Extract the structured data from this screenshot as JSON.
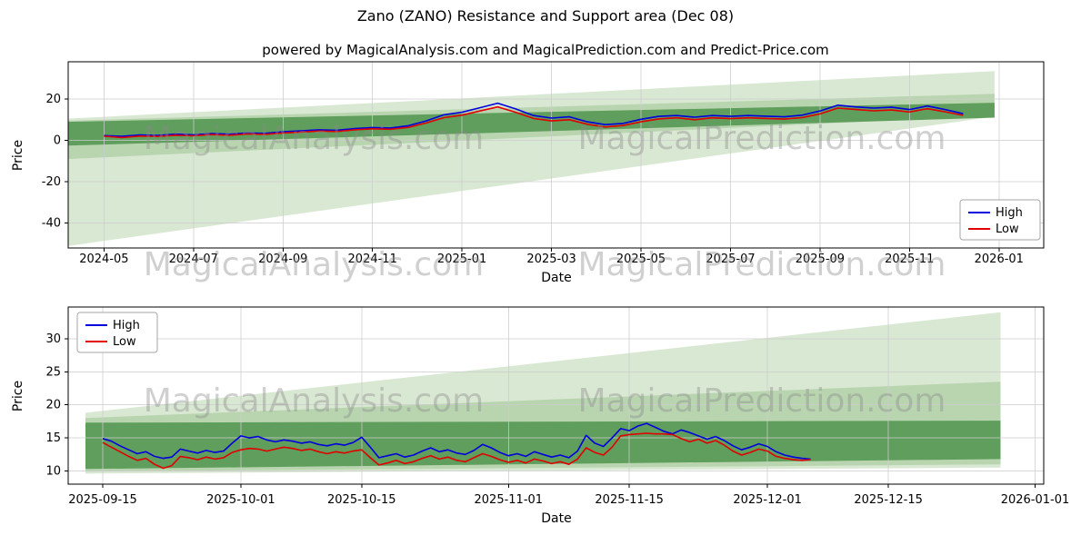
{
  "title": "Zano (ZANO) Resistance and Support area (Dec 08)",
  "subtitle": "powered by MagicalAnalysis.com and MagicalPrediction.com and Predict-Price.com",
  "watermarks": {
    "left": "MagicalAnalysis.com",
    "right": "MagicalPrediction.com"
  },
  "colors": {
    "high": "#0000dd",
    "low": "#e00000",
    "grid": "#cccccc",
    "watermark": "#8c8c8c",
    "band_light": "#d9e8d3",
    "band_mid": "#b9d5b0",
    "band_dark": "#5f9e5c"
  },
  "chart_data": [
    {
      "type": "line",
      "title": "Zano (ZANO) Resistance and Support area",
      "xlabel": "Date",
      "ylabel": "Price",
      "xlim": [
        -0.8,
        21.0
      ],
      "ylim": [
        -52,
        38
      ],
      "x_ticks": {
        "pos": [
          0,
          2,
          4,
          6,
          8,
          10,
          12,
          14,
          16,
          18,
          20
        ],
        "labels": [
          "2024-05",
          "2024-07",
          "2024-09",
          "2024-11",
          "2025-01",
          "2025-03",
          "2025-05",
          "2025-07",
          "2025-09",
          "2025-11",
          "2026-01"
        ]
      },
      "y_ticks": [
        -40,
        -20,
        0,
        20
      ],
      "legend_position": "lower right",
      "bands": [
        {
          "name": "outer-support-area",
          "color": "#d9e8d3",
          "points": [
            [
              -0.8,
              10.5
            ],
            [
              19.9,
              33.5
            ],
            [
              19.9,
              11.5
            ],
            [
              -0.8,
              -51
            ]
          ]
        },
        {
          "name": "mid-support-area",
          "color": "#b9d5b0",
          "points": [
            [
              -0.8,
              9.5
            ],
            [
              19.9,
              22.5
            ],
            [
              19.9,
              12.0
            ],
            [
              -0.8,
              -9
            ]
          ]
        },
        {
          "name": "core-resistance-band",
          "color": "#5f9e5c",
          "points": [
            [
              -0.8,
              9.0
            ],
            [
              19.9,
              18.2
            ],
            [
              19.9,
              11.0
            ],
            [
              -0.8,
              -2.5
            ]
          ]
        }
      ],
      "series": [
        {
          "name": "High",
          "color": "#0000dd",
          "x_start": 0,
          "x_step": 0.4,
          "values": [
            2.3,
            2.0,
            2.6,
            2.4,
            3.0,
            2.7,
            3.3,
            3.0,
            3.6,
            3.4,
            4.2,
            4.6,
            5.1,
            4.9,
            5.7,
            6.2,
            6.0,
            7.1,
            9.4,
            12.4,
            13.6,
            15.8,
            18.0,
            15.2,
            12.0,
            10.8,
            11.4,
            9.0,
            7.6,
            8.2,
            10.2,
            11.6,
            12.0,
            11.2,
            12.0,
            11.6,
            12.0,
            11.7,
            11.4,
            12.2,
            14.2,
            17.0,
            16.2,
            15.6,
            16.0,
            14.9,
            16.6,
            14.9,
            12.9
          ]
        },
        {
          "name": "Low",
          "color": "#e00000",
          "x_start": 0,
          "x_step": 0.4,
          "values": [
            2.0,
            1.4,
            2.1,
            1.9,
            2.5,
            2.2,
            2.8,
            2.5,
            3.1,
            2.9,
            3.6,
            4.0,
            4.5,
            4.3,
            5.1,
            5.6,
            5.4,
            6.3,
            8.4,
            11.0,
            12.2,
            14.2,
            16.2,
            13.6,
            10.6,
            9.4,
            10.0,
            7.8,
            6.5,
            7.2,
            9.0,
            10.4,
            10.9,
            10.0,
            10.9,
            10.5,
            10.9,
            10.6,
            10.3,
            11.0,
            12.8,
            15.6,
            14.9,
            14.3,
            14.7,
            13.7,
            15.3,
            13.8,
            12.1
          ]
        }
      ]
    },
    {
      "type": "line",
      "title": "Zano (ZANO) Resistance and Support area (detail)",
      "xlabel": "Date",
      "ylabel": "Price",
      "xlim": [
        -4,
        109
      ],
      "ylim": [
        8,
        34.8
      ],
      "x_ticks": {
        "pos": [
          0,
          16,
          30,
          47,
          61,
          77,
          91,
          108
        ],
        "labels": [
          "2025-09-15",
          "2025-10-01",
          "2025-10-15",
          "2025-11-01",
          "2025-11-15",
          "2025-12-01",
          "2025-12-15",
          "2026-01-01"
        ]
      },
      "y_ticks": [
        10,
        15,
        20,
        25,
        30
      ],
      "legend_position": "upper left",
      "bands": [
        {
          "name": "outer-support-area",
          "color": "#d9e8d3",
          "points": [
            [
              -2,
              18.8
            ],
            [
              104,
              34.0
            ],
            [
              104,
              10.5
            ],
            [
              -2,
              9.6
            ]
          ]
        },
        {
          "name": "mid-support-area",
          "color": "#b9d5b0",
          "points": [
            [
              -2,
              18.0
            ],
            [
              104,
              23.5
            ],
            [
              104,
              11.0
            ],
            [
              -2,
              9.9
            ]
          ]
        },
        {
          "name": "core-resistance-band",
          "color": "#5f9e5c",
          "points": [
            [
              -2,
              17.3
            ],
            [
              104,
              17.6
            ],
            [
              104,
              11.8
            ],
            [
              -2,
              10.3
            ]
          ]
        }
      ],
      "series": [
        {
          "name": "High",
          "color": "#0000dd",
          "x_start": 0,
          "x_step": 1,
          "values": [
            14.9,
            14.5,
            13.8,
            13.2,
            12.6,
            12.9,
            12.2,
            11.9,
            12.1,
            13.3,
            13.0,
            12.7,
            13.1,
            12.8,
            13.0,
            14.2,
            15.3,
            15.0,
            15.2,
            14.7,
            14.4,
            14.7,
            14.5,
            14.2,
            14.4,
            14.0,
            13.8,
            14.1,
            13.9,
            14.3,
            15.1,
            13.6,
            12.0,
            12.3,
            12.6,
            12.1,
            12.4,
            13.0,
            13.5,
            12.9,
            13.2,
            12.7,
            12.5,
            13.1,
            14.0,
            13.5,
            12.8,
            12.3,
            12.6,
            12.2,
            12.9,
            12.5,
            12.1,
            12.4,
            12.0,
            13.0,
            15.4,
            14.2,
            13.7,
            15.0,
            16.4,
            16.1,
            16.8,
            17.2,
            16.6,
            16.0,
            15.6,
            16.2,
            15.8,
            15.3,
            14.8,
            15.2,
            14.6,
            13.8,
            13.2,
            13.6,
            14.1,
            13.7,
            12.9,
            12.4,
            12.1,
            11.9,
            11.8
          ]
        },
        {
          "name": "Low",
          "color": "#e00000",
          "x_start": 0,
          "x_step": 1,
          "values": [
            14.3,
            13.6,
            12.9,
            12.2,
            11.6,
            11.9,
            11.0,
            10.4,
            10.8,
            12.2,
            12.0,
            11.7,
            12.1,
            11.8,
            12.0,
            12.8,
            13.2,
            13.4,
            13.3,
            13.0,
            13.3,
            13.6,
            13.4,
            13.1,
            13.3,
            12.9,
            12.6,
            12.9,
            12.7,
            13.0,
            13.2,
            12.0,
            10.9,
            11.2,
            11.6,
            11.1,
            11.4,
            11.9,
            12.3,
            11.8,
            12.1,
            11.6,
            11.4,
            12.0,
            12.6,
            12.2,
            11.7,
            11.3,
            11.6,
            11.2,
            11.8,
            11.5,
            11.1,
            11.4,
            11.0,
            11.8,
            13.5,
            12.8,
            12.4,
            13.6,
            15.3,
            15.5,
            15.6,
            15.7,
            15.6,
            15.6,
            15.5,
            14.9,
            14.4,
            14.8,
            14.2,
            14.6,
            13.9,
            13.0,
            12.4,
            12.8,
            13.3,
            13.0,
            12.2,
            11.9,
            11.7,
            11.6,
            11.7
          ]
        }
      ]
    }
  ]
}
